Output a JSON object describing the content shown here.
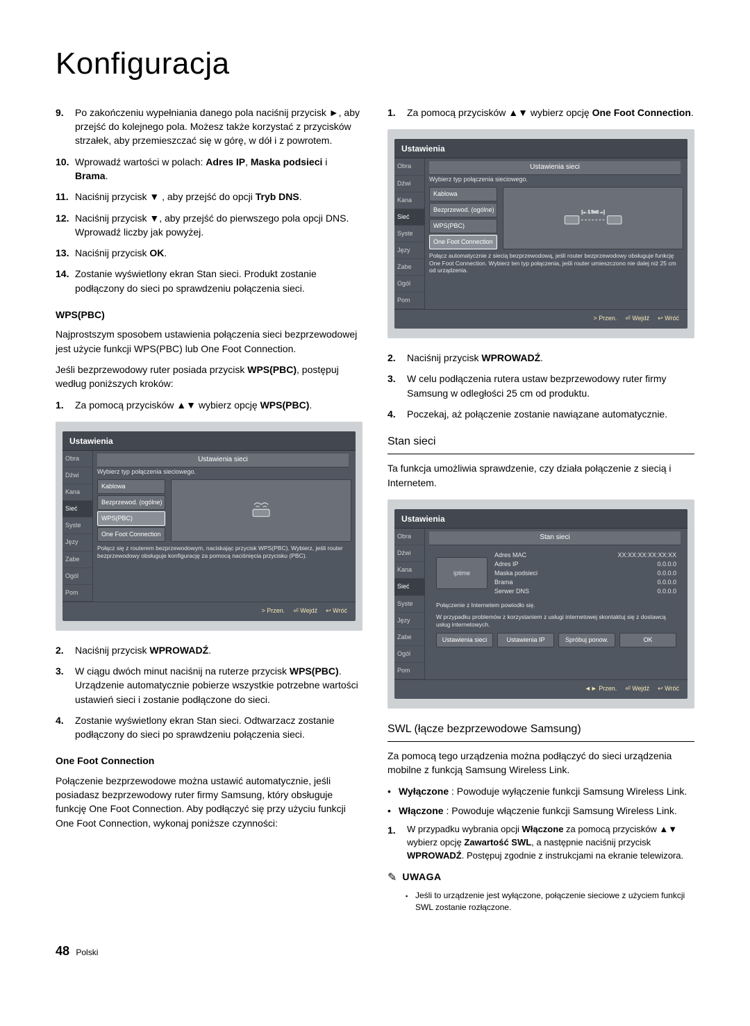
{
  "title": "Konfiguracja",
  "left": {
    "steps": [
      {
        "n": "9.",
        "t": "Po zakończeniu wypełniania danego pola naciśnij przycisk ►, aby przejść do kolejnego pola. Możesz także korzystać z przycisków strzałek, aby przemieszczać się w górę, w dół i z powrotem."
      },
      {
        "n": "10.",
        "t": "Wprowadź wartości w polach: ",
        "b1": "Adres IP",
        "mid": ", ",
        "b2": "Maska podsieci",
        "mid2": " i ",
        "b3": "Brama",
        "end": "."
      },
      {
        "n": "11.",
        "t": "Naciśnij przycisk ▼ , aby przejść do opcji ",
        "b1": "Tryb DNS",
        "end": "."
      },
      {
        "n": "12.",
        "t": "Naciśnij przycisk ▼, aby przejść do pierwszego pola opcji DNS. Wprowadź liczby jak powyżej."
      },
      {
        "n": "13.",
        "t": "Naciśnij przycisk ",
        "b1": "OK",
        "end": "."
      },
      {
        "n": "14.",
        "t": "Zostanie wyświetlony ekran Stan sieci. Produkt zostanie podłączony do sieci po sprawdzeniu połączenia sieci."
      }
    ],
    "wps_hdr": "WPS(PBC)",
    "wps_p1": "Najprostszym sposobem ustawienia połączenia sieci bezprzewodowej jest użycie funkcji WPS(PBC) lub One Foot Connection.",
    "wps_p2_a": "Jeśli bezprzewodowy ruter posiada przycisk ",
    "wps_p2_b": "WPS(PBC)",
    "wps_p2_c": ", postępuj według poniższych kroków:",
    "wps_steps": [
      {
        "n": "1.",
        "t": "Za pomocą przycisków ▲▼ wybierz opcję ",
        "b1": "WPS(PBC)",
        "end": "."
      }
    ],
    "dlg1": {
      "title": "Ustawienia",
      "sub": "Ustawienia sieci",
      "instr": "Wybierz typ połączenia sieciowego.",
      "side": [
        "Obra",
        "Dźwi",
        "Kana",
        "Sieć",
        "Syste",
        "Języ",
        "Zabe",
        "Ogól",
        "Pom"
      ],
      "opts": [
        "Kablowa",
        "Bezprzewod. (ogólne)",
        "WPS(PBC)",
        "One Foot Connection"
      ],
      "sel_idx": 2,
      "desc": "Połącz się z routerem bezprzewodowym, naciskając przycisk WPS(PBC). Wybierz, jeśli router bezprzewodowy obsługuje konfigurację za pomocą naciśnięcia przycisku (PBC).",
      "foot": [
        "> Przen.",
        "⏎ Wejdź",
        "↩ Wróć"
      ]
    },
    "post_steps": [
      {
        "n": "2.",
        "t": "Naciśnij przycisk ",
        "b1": "WPROWADŹ",
        "end": "."
      },
      {
        "n": "3.",
        "t": "W ciągu dwóch minut naciśnij na ruterze przycisk ",
        "b1": "WPS(PBC)",
        "end": ". Urządzenie automatycznie pobierze wszystkie potrzebne wartości ustawień sieci i zostanie podłączone do sieci."
      },
      {
        "n": "4.",
        "t": "Zostanie wyświetlony ekran Stan sieci. Odtwarzacz zostanie podłączony do sieci po sprawdzeniu połączenia sieci."
      }
    ],
    "ofc_hdr": "One Foot Connection",
    "ofc_p": "Połączenie bezprzewodowe można ustawić automatycznie, jeśli posiadasz bezprzewodowy ruter firmy Samsung, który obsługuje funkcję One Foot Connection. Aby podłączyć się przy użyciu funkcji One Foot Connection, wykonaj poniższe czynności:"
  },
  "right": {
    "steps1": [
      {
        "n": "1.",
        "t": "Za pomocą przycisków ▲▼ wybierz opcję ",
        "b1": "One Foot Connection",
        "end": "."
      }
    ],
    "dlg2": {
      "title": "Ustawienia",
      "sub": "Ustawienia sieci",
      "instr": "Wybierz typ połączenia sieciowego.",
      "side": [
        "Obra",
        "Dźwi",
        "Kana",
        "Sieć",
        "Syste",
        "Języ",
        "Zabe",
        "Ogól",
        "Pom"
      ],
      "opts": [
        "Kablowa",
        "Bezprzewod. (ogólne)",
        "WPS(PBC)",
        "One Foot Connection"
      ],
      "sel_idx": 3,
      "desc": "Połącz automatycznie z siecią bezprzewodową, jeśli router bezprzewodowy obsługuje funkcję One Foot Connection. Wybierz ten typ połączenia, jeśli router umieszczono nie dalej niż 25 cm od urządzenia.",
      "foot": [
        "> Przen.",
        "⏎ Wejdź",
        "↩ Wróć"
      ]
    },
    "steps2": [
      {
        "n": "2.",
        "t": "Naciśnij przycisk ",
        "b1": "WPROWADŹ",
        "end": "."
      },
      {
        "n": "3.",
        "t": "W celu podłączenia rutera ustaw bezprzewodowy ruter firmy Samsung w odległości 25 cm od produktu."
      },
      {
        "n": "4.",
        "t": "Poczekaj, aż połączenie zostanie nawiązane automatycznie."
      }
    ],
    "stan_hdr": "Stan sieci",
    "stan_p": "Ta funkcja umożliwia sprawdzenie, czy działa połączenie z siecią i Internetem.",
    "dlg3": {
      "title": "Ustawienia",
      "sub": "Stan sieci",
      "side": [
        "Obra",
        "Dźwi",
        "Kana",
        "Sieć",
        "Syste",
        "Języ",
        "Zabe",
        "Ogól",
        "Pom"
      ],
      "ip": "iptime",
      "kv": [
        [
          "Adres MAC",
          "XX:XX:XX:XX:XX:XX"
        ],
        [
          "Adres IP",
          "0.0.0.0"
        ],
        [
          "Maska podsieci",
          "0.0.0.0"
        ],
        [
          "Brama",
          "0.0.0.0"
        ],
        [
          "Serwer DNS",
          "0.0.0.0"
        ]
      ],
      "msg1": "Połączenie z Internetem powiodło się.",
      "msg2": "W przypadku problemów z korzystaniem z usługi internetowej skontaktuj się z dostawcą usług internetowych.",
      "btns": [
        "Ustawienia sieci",
        "Ustawienia IP",
        "Spróbuj ponow.",
        "OK"
      ],
      "foot": [
        "◄► Przen.",
        "⏎ Wejdź",
        "↩ Wróć"
      ]
    },
    "swl_hdr": "SWL (łącze bezprzewodowe Samsung)",
    "swl_p": "Za pomocą tego urządzenia można podłączyć do sieci urządzenia mobilne z funkcją Samsung Wireless Link.",
    "swl_bul": [
      {
        "b": "Wyłączone",
        "t": " : Powoduje wyłączenie funkcji Samsung Wireless Link."
      },
      {
        "b": "Włączone",
        "t": " : Powoduje włączenie funkcji Samsung Wireless Link."
      }
    ],
    "swl_step": {
      "n": "1.",
      "a": "W przypadku wybrania opcji ",
      "b1": "Włączone",
      "c": " za pomocą przycisków ▲▼ wybierz opcję ",
      "b2": "Zawartość SWL",
      "d": ", a następnie naciśnij przycisk ",
      "b3": "WPROWADŹ",
      "e": ". Postępuj zgodnie z instrukcjami na ekranie telewizora."
    },
    "note_label": "UWAGA",
    "note": "Jeśli to urządzenie jest wyłączone, połączenie sieciowe z użyciem funkcji SWL zostanie rozłączone."
  },
  "footer": {
    "num": "48",
    "lang": "Polski"
  }
}
